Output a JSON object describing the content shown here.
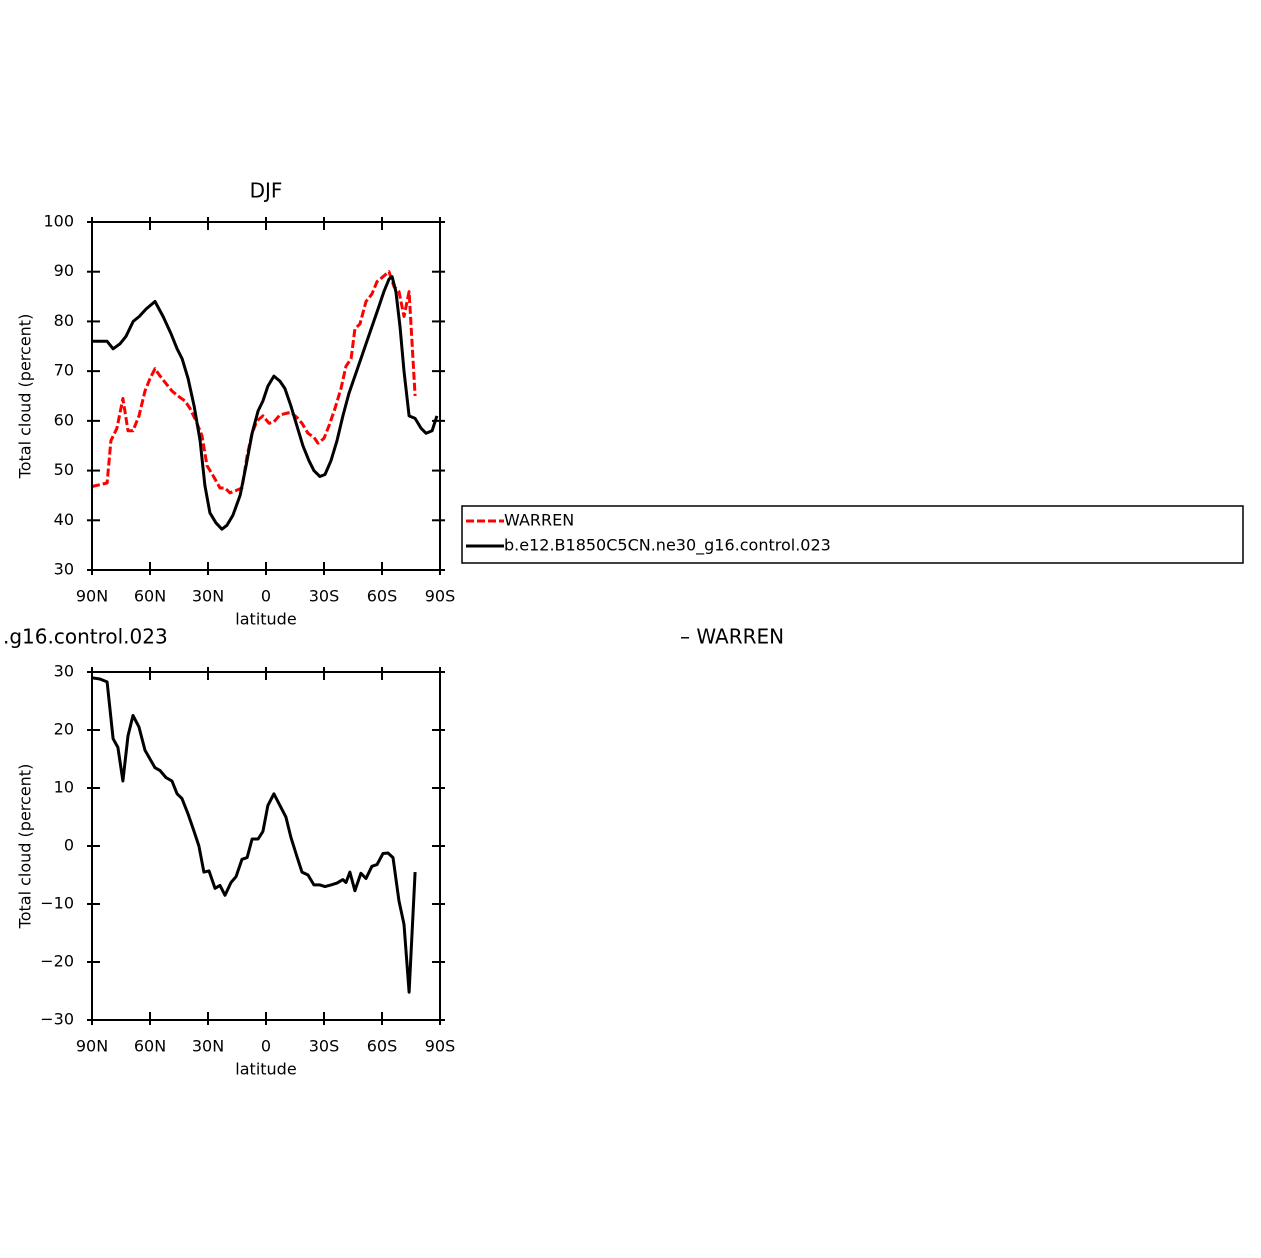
{
  "chart_data": [
    {
      "type": "line",
      "title": "DJF",
      "xlabel": "latitude",
      "ylabel": "Total cloud (percent)",
      "xlim": [
        90,
        -90
      ],
      "xticks": [
        {
          "value": 90,
          "label": "90N"
        },
        {
          "value": 60,
          "label": "60N"
        },
        {
          "value": 30,
          "label": "30N"
        },
        0,
        {
          "value": -30,
          "label": "30S"
        },
        {
          "value": -60,
          "label": "60S"
        },
        {
          "value": -90,
          "label": "90S"
        }
      ],
      "ylim": [
        30,
        100
      ],
      "yticks": [
        30,
        40,
        50,
        60,
        70,
        80,
        90,
        100
      ],
      "legend": "right",
      "series": [
        {
          "name": "WARREN",
          "color": "#ff0000",
          "linestyle": "dashed",
          "x": [
            90,
            82.2,
            80.2,
            77.1,
            74,
            71.4,
            68.8,
            65.7,
            62.6,
            60,
            57.4,
            54.8,
            51.7,
            48.6,
            45.5,
            41.9,
            39.3,
            36.2,
            33.1,
            30.5,
            27.4,
            23.8,
            21.2,
            18.6,
            15.5,
            12.4,
            9.8,
            7.2,
            4.7,
            1.6,
            -1.6,
            -4.1,
            -7.2,
            -10.3,
            -12.9,
            -16,
            -18.6,
            -21.7,
            -24.8,
            -26.9,
            -30,
            -32.6,
            -35.7,
            -38.8,
            -41.4,
            -44,
            -46,
            -48.6,
            -51.7,
            -54.8,
            -57.4,
            -60.5,
            -63.6,
            -66.2,
            -68.8,
            -71.4,
            -74,
            -77.1
          ],
          "values": [
            46.8,
            47.5,
            56,
            58.5,
            64.5,
            58,
            58,
            61,
            66,
            68.5,
            70.5,
            69,
            67.5,
            66,
            65,
            64,
            62.5,
            60,
            57,
            51,
            49,
            46.5,
            46.5,
            45.5,
            46,
            46.5,
            53,
            57.5,
            60,
            61,
            59.5,
            59.8,
            61.2,
            61.5,
            61.7,
            60.7,
            59.5,
            57.5,
            56.7,
            55.5,
            56.5,
            59,
            62.5,
            66.5,
            71,
            72.5,
            78.5,
            79.5,
            84,
            85.5,
            88,
            89,
            90,
            87,
            86,
            81,
            86,
            65
          ]
        },
        {
          "name": "b.e12.B1850C5CN.ne30_g16.control.023",
          "color": "#000000",
          "linestyle": "solid",
          "x": [
            90,
            82.2,
            79.1,
            75.5,
            72.4,
            68.7,
            65.6,
            62,
            57.4,
            53.2,
            49.1,
            46,
            43.4,
            40.3,
            37.2,
            34.1,
            31.6,
            29,
            25.9,
            22.8,
            20.2,
            17.1,
            13.4,
            10.3,
            7.2,
            4.1,
            1.6,
            -1,
            -4.1,
            -7.2,
            -9.8,
            -12.9,
            -16,
            -19.1,
            -22.2,
            -24.8,
            -27.9,
            -30.5,
            -33.6,
            -36.7,
            -39.8,
            -42.9,
            -46,
            -49.1,
            -52.2,
            -55.3,
            -58.4,
            -61,
            -63.6,
            -65.2,
            -67.2,
            -69.3,
            -71.4,
            -74,
            -77.1,
            -80.2,
            -82.8,
            -85.9,
            -88.4
          ],
          "values": [
            76,
            76,
            74.5,
            75.5,
            77,
            80,
            81,
            82.5,
            84,
            81,
            77.5,
            74.5,
            72.5,
            68.5,
            63,
            56,
            47,
            41.5,
            39.5,
            38.2,
            39,
            41,
            45,
            51,
            57.5,
            62,
            64,
            67,
            69,
            68,
            66.5,
            63,
            59,
            55,
            52,
            50,
            48.8,
            49.2,
            52,
            56,
            61,
            65.5,
            69,
            72.5,
            76,
            79.5,
            83,
            86,
            88.5,
            89,
            86,
            79,
            70,
            61,
            60.5,
            58.5,
            57.5,
            58,
            61
          ]
        }
      ]
    },
    {
      "type": "line",
      "title_left": ".g16.control.023",
      "title_right": "– WARREN",
      "xlabel": "latitude",
      "ylabel": "Total cloud (percent)",
      "xlim": [
        90,
        -90
      ],
      "xticks": [
        {
          "value": 90,
          "label": "90N"
        },
        {
          "value": 60,
          "label": "60N"
        },
        {
          "value": 30,
          "label": "30N"
        },
        0,
        {
          "value": -30,
          "label": "30S"
        },
        {
          "value": -60,
          "label": "60S"
        },
        {
          "value": -90,
          "label": "90S"
        }
      ],
      "ylim": [
        -30,
        30
      ],
      "yticks": [
        {
          "value": -30,
          "label": "−30"
        },
        {
          "value": -20,
          "label": "−20"
        },
        {
          "value": -10,
          "label": "−10"
        },
        0,
        10,
        20,
        30
      ],
      "series": [
        {
          "color": "#000000",
          "linestyle": "solid",
          "x": [
            90,
            85.9,
            82.2,
            79.1,
            76.6,
            74,
            71.4,
            68.8,
            65.7,
            62.6,
            60,
            57.4,
            54.8,
            51.7,
            48.6,
            46,
            43.5,
            40.3,
            37.2,
            34.7,
            32.1,
            29.5,
            26.4,
            23.8,
            21.2,
            18.1,
            15.5,
            12.4,
            9.8,
            7.2,
            4.1,
            1.6,
            -1,
            -4.1,
            -7.2,
            -10.3,
            -12.9,
            -16,
            -18.6,
            -21.7,
            -24.8,
            -27.9,
            -30.5,
            -33.6,
            -36.7,
            -39.8,
            -41.4,
            -43.4,
            -46,
            -49.1,
            -51.7,
            -54.8,
            -57.4,
            -60.5,
            -63.1,
            -65.7,
            -68.8,
            -71.4,
            -74,
            -77.1
          ],
          "values": [
            29,
            28.8,
            28.3,
            18.5,
            17,
            11.2,
            19,
            22.5,
            20.5,
            16.5,
            15,
            13.5,
            13,
            11.8,
            11.2,
            9,
            8.2,
            5.5,
            2.5,
            0,
            -4.5,
            -4.3,
            -7.3,
            -6.8,
            -8.5,
            -6.3,
            -5.3,
            -2.3,
            -2,
            1.2,
            1.2,
            2.5,
            7,
            9,
            7,
            5,
            1.5,
            -1.8,
            -4.5,
            -5,
            -6.7,
            -6.7,
            -7,
            -6.7,
            -6.4,
            -5.8,
            -6.3,
            -4.5,
            -7.7,
            -4.7,
            -5.6,
            -3.5,
            -3.2,
            -1.3,
            -1.2,
            -2,
            -9.5,
            -13.5,
            -25.2,
            -4.5
          ]
        }
      ]
    }
  ]
}
